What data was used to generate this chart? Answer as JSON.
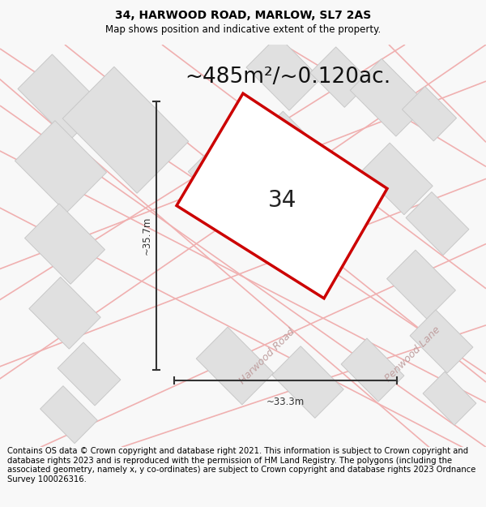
{
  "title": "34, HARWOOD ROAD, MARLOW, SL7 2AS",
  "subtitle": "Map shows position and indicative extent of the property.",
  "area_text": "~485m²/~0.120ac.",
  "width_label": "~33.3m",
  "height_label": "~35.7m",
  "property_number": "34",
  "footer_text": "Contains OS data © Crown copyright and database right 2021. This information is subject to Crown copyright and database rights 2023 and is reproduced with the permission of HM Land Registry. The polygons (including the associated geometry, namely x, y co-ordinates) are subject to Crown copyright and database rights 2023 Ordnance Survey 100026316.",
  "bg_color": "#f8f8f8",
  "map_bg": "#ffffff",
  "road_color": "#f0b0b0",
  "road_lw": 1.2,
  "building_face": "#e0e0e0",
  "building_edge": "#c8c8c8",
  "property_fill": "#ffffff",
  "property_edge": "#cc0000",
  "property_edge_lw": 2.5,
  "dim_color": "#333333",
  "road_label_color": "#c0a0a0",
  "title_fontsize": 10,
  "subtitle_fontsize": 8.5,
  "area_fontsize": 19,
  "label_fontsize": 8.5,
  "number_fontsize": 20,
  "footer_fontsize": 7.2
}
